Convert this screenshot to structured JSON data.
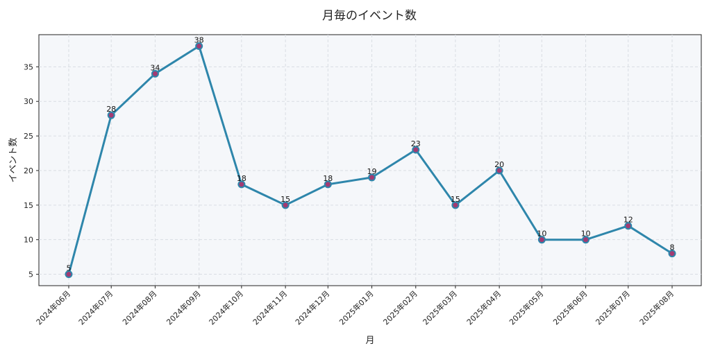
{
  "chart_data": {
    "type": "line",
    "title": "月毎のイベント数",
    "xlabel": "月",
    "ylabel": "イベント数",
    "categories": [
      "2024年06月",
      "2024年07月",
      "2024年08月",
      "2024年09月",
      "2024年10月",
      "2024年11月",
      "2024年12月",
      "2025年01月",
      "2025年02月",
      "2025年03月",
      "2025年04月",
      "2025年05月",
      "2025年06月",
      "2025年07月",
      "2025年08月"
    ],
    "x_dates": [
      "2024-06-01",
      "2024-07-01",
      "2024-08-01",
      "2024-09-01",
      "2024-10-01",
      "2024-11-01",
      "2024-12-01",
      "2025-01-01",
      "2025-02-01",
      "2025-03-01",
      "2025-04-01",
      "2025-05-01",
      "2025-06-01",
      "2025-07-01",
      "2025-08-01"
    ],
    "values": [
      5,
      28,
      34,
      38,
      18,
      15,
      18,
      19,
      23,
      15,
      20,
      10,
      10,
      12,
      8
    ],
    "ylim": [
      3.35,
      39.65
    ],
    "yticks": [
      5,
      10,
      15,
      20,
      25,
      30,
      35
    ],
    "grid": true,
    "data_labels": true,
    "colors": {
      "line": "#2e86ab",
      "marker": "#a23b72",
      "plot_bg": "#f5f7fa",
      "grid": "#d9dde3"
    }
  }
}
